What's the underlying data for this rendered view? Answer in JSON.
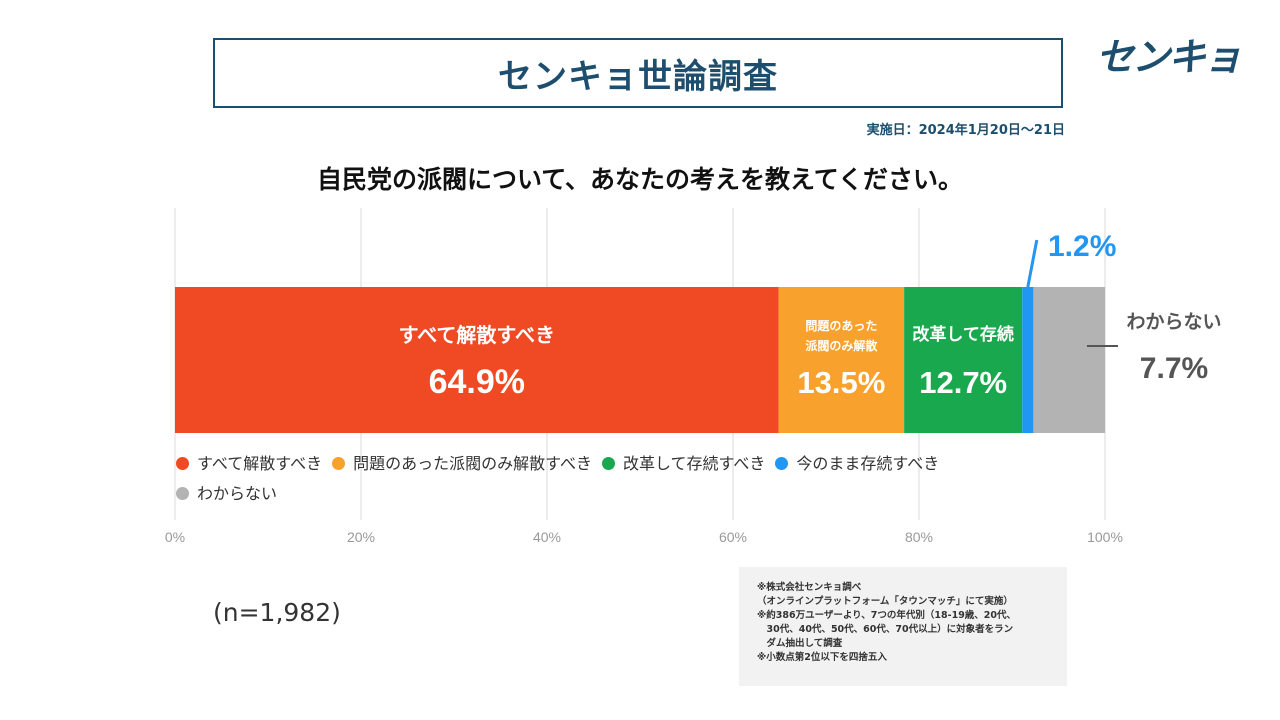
{
  "header": {
    "title": "センキョ世論調査",
    "logo": "センキョ",
    "date": "実施日：2024年1月20日〜21日"
  },
  "question": "自民党の派閥について、あなたの考えを教えてください。",
  "sample": "(n=1,982)",
  "notes": [
    "※株式会社センキョ調べ",
    "（オンラインプラットフォーム「タウンマッチ」にて実施）",
    "※約386万ユーザーより、7つの年代別（18-19歳、20代、",
    "　30代、40代、50代、60代、70代以上）に対象者をラン",
    "　ダム抽出して調査",
    "※小数点第2位以下を四捨五入"
  ],
  "chart_data": {
    "type": "bar",
    "orientation": "horizontal-stacked",
    "xlim": [
      0,
      100
    ],
    "ticks": [
      "0%",
      "20%",
      "40%",
      "60%",
      "80%",
      "100%"
    ],
    "tick_values": [
      0,
      20,
      40,
      60,
      80,
      100
    ],
    "grid": true,
    "series": [
      {
        "name": "すべて解散すべき",
        "value": 64.9,
        "value_label": "64.9%",
        "label_lines": [
          "すべて解散すべき"
        ],
        "color": "#ef4a23"
      },
      {
        "name": "問題のあった派閥のみ解散すべき",
        "value": 13.5,
        "value_label": "13.5%",
        "label_lines": [
          "問題のあった",
          "派閥のみ解散"
        ],
        "color": "#f9a12d"
      },
      {
        "name": "改革して存続すべき",
        "value": 12.7,
        "value_label": "12.7%",
        "label_lines": [
          "改革して存続"
        ],
        "color": "#1aa84f"
      },
      {
        "name": "今のまま存続すべき",
        "value": 1.2,
        "value_label": "1.2%",
        "label_lines": [],
        "color": "#2196f3"
      },
      {
        "name": "わからない",
        "value": 7.7,
        "value_label": "7.7%",
        "label_lines": [
          "わからない"
        ],
        "color": "#b3b3b3"
      }
    ]
  }
}
